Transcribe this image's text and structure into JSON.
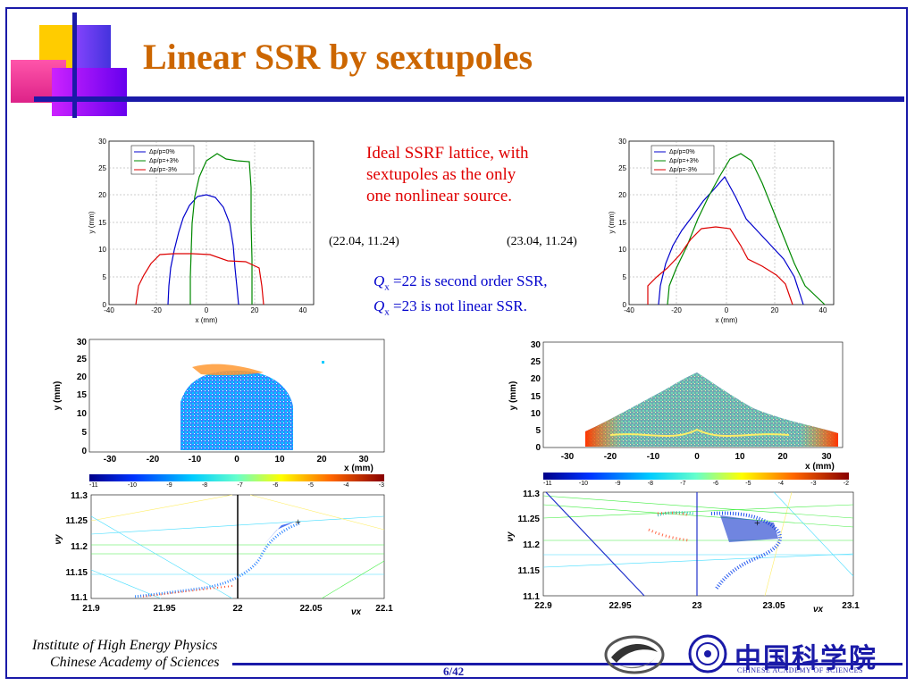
{
  "title": "Linear SSR by sextupoles",
  "description_red": [
    "Ideal SSRF lattice, with",
    "sextupoles as the only",
    "one nonlinear source."
  ],
  "coords": {
    "left": "(22.04, 11.24)",
    "right": "(23.04, 11.24)"
  },
  "qx_notes": [
    {
      "sym": "Q",
      "sub": "x",
      "text": "=22 is second order SSR,"
    },
    {
      "sym": "Q",
      "sub": "x",
      "text": "=23 is not linear SSR."
    }
  ],
  "aperture_plots": {
    "legend": [
      "Δp/p=0%",
      "Δp/p=+3%",
      "Δp/p=-3%"
    ],
    "xlabel": "x (mm)",
    "ylabel": "y (mm)",
    "xticks": [
      "-40",
      "-20",
      "0",
      "20",
      "40"
    ],
    "yticks": [
      "0",
      "5",
      "10",
      "15",
      "20",
      "25",
      "30"
    ],
    "colors": {
      "p0": "#0000cc",
      "p3": "#008800",
      "m3": "#dd0000"
    }
  },
  "diffusion_plots": {
    "xlabel": "x (mm)",
    "ylabel": "y (mm)",
    "xticks": [
      "-30",
      "-20",
      "-10",
      "0",
      "10",
      "20",
      "30"
    ],
    "yticks": [
      "0",
      "5",
      "10",
      "15",
      "20",
      "25",
      "30"
    ],
    "colorbar_left": [
      "-11",
      "-10",
      "-9",
      "-8",
      "-7",
      "-6",
      "-5",
      "-4",
      "-3"
    ],
    "colorbar_right": [
      "-11",
      "-10",
      "-9",
      "-8",
      "-7",
      "-6",
      "-5",
      "-4",
      "-3",
      "-2"
    ]
  },
  "tune_plots": {
    "ylabel": "νy",
    "xlabel": "νx",
    "yticks": [
      "11.1",
      "11.15",
      "11.2",
      "11.25",
      "11.3"
    ],
    "xticks_left": [
      "21.9",
      "21.95",
      "22",
      "22.05",
      "22.1"
    ],
    "xticks_right": [
      "22.9",
      "22.95",
      "23",
      "23.05",
      "23.1"
    ]
  },
  "footer": {
    "institute_line1": "Institute of High Energy Physics",
    "institute_line2": "Chinese Academy of Sciences",
    "page": "6/42",
    "cas_english": "CHINESE ACADEMY OF SCIENCES",
    "cas_chinese": "中国科学院"
  }
}
